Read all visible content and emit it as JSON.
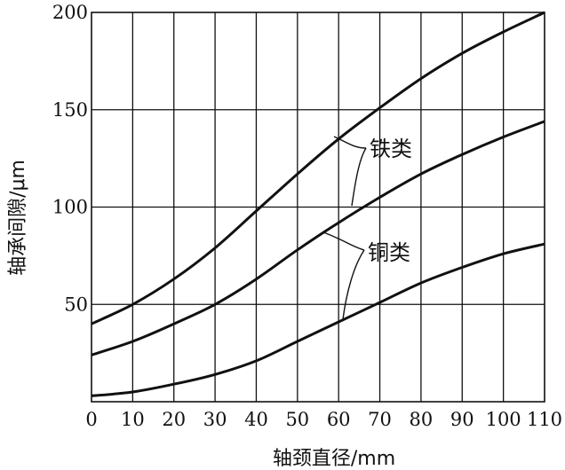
{
  "chart_data": {
    "type": "line",
    "xlabel": "轴颈直径/mm",
    "ylabel": "轴承间隙/μm",
    "xlim": [
      0,
      110
    ],
    "ylim": [
      0,
      200
    ],
    "x_ticks": [
      "0",
      "10",
      "20",
      "30",
      "40",
      "50",
      "60",
      "70",
      "80",
      "90",
      "100",
      "110"
    ],
    "y_ticks": [
      "50",
      "100",
      "150",
      "200"
    ],
    "grid": true,
    "series": [
      {
        "x": [
          0,
          10,
          20,
          30,
          40,
          50,
          60,
          70,
          80,
          90,
          100,
          110
        ],
        "values": [
          40,
          50,
          63,
          79,
          98,
          117,
          135,
          151,
          166,
          179,
          190,
          200
        ]
      },
      {
        "x": [
          0,
          10,
          20,
          30,
          40,
          50,
          60,
          70,
          80,
          90,
          100,
          110
        ],
        "values": [
          24,
          31,
          40,
          50,
          63,
          78,
          92,
          105,
          117,
          127,
          136,
          144
        ]
      },
      {
        "x": [
          0,
          10,
          20,
          30,
          40,
          50,
          60,
          70,
          80,
          90,
          100,
          110
        ],
        "values": [
          3,
          5,
          9,
          14,
          21,
          31,
          41,
          51,
          61,
          69,
          76,
          81
        ]
      }
    ],
    "annotations": [
      {
        "text": "铁类",
        "points_to_series": [
          0,
          1
        ]
      },
      {
        "text": "铜类",
        "points_to_series": [
          1,
          2
        ]
      }
    ]
  }
}
